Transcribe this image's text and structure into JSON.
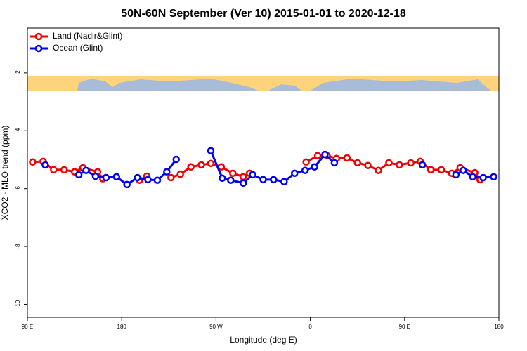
{
  "chart_data": {
    "type": "line",
    "title": "50N-60N September (Ver 10)   2015-01-01 to 2020-12-18",
    "x_label": "Longitude (deg E)",
    "y_label": "XCO2 - MLO trend (ppm)",
    "xlim": [
      90,
      540
    ],
    "xticks": [
      {
        "value": 90,
        "label": "90 E"
      },
      180,
      {
        "value": 270,
        "label": "90 W"
      },
      {
        "value": 360,
        "label": "0"
      },
      {
        "value": 450,
        "label": "90 E"
      },
      {
        "value": 540,
        "label": "180"
      }
    ],
    "ylim": [
      -10.45,
      -0.45
    ],
    "yticks": [
      -10,
      -8,
      -6,
      -4,
      -2
    ],
    "legend": "top-left",
    "series": [
      {
        "name": "Land (Nadir&Glint)",
        "color": "#ee0000",
        "x": [
          95,
          105,
          115,
          125,
          135,
          143,
          157,
          162,
          null,
          197,
          204,
          null,
          227,
          236,
          246,
          256,
          265,
          275,
          286,
          296,
          302,
          null,
          356,
          367,
          376,
          385,
          395,
          405,
          415,
          425,
          435,
          445,
          456,
          465,
          475,
          485,
          495,
          503,
          517,
          522
        ],
        "values": [
          -5.08,
          -5.06,
          -5.35,
          -5.35,
          -5.42,
          -5.28,
          -5.42,
          -5.66,
          null,
          -5.71,
          -5.57,
          null,
          -5.62,
          -5.5,
          -5.25,
          -5.18,
          -5.13,
          -5.25,
          -5.47,
          -5.59,
          -5.47,
          null,
          -5.08,
          -4.86,
          -4.86,
          -4.96,
          -4.94,
          -5.11,
          -5.2,
          -5.37,
          -5.11,
          -5.18,
          -5.11,
          -5.06,
          -5.35,
          -5.35,
          -5.47,
          -5.28,
          -5.45,
          -5.69
        ]
      },
      {
        "name": "Ocean (Glint)",
        "color": "#0000ee",
        "x": [
          107,
          null,
          139,
          146,
          155,
          165,
          175,
          185,
          195,
          205,
          214,
          223,
          232,
          null,
          265,
          276,
          284,
          296,
          305,
          315,
          325,
          335,
          345,
          355,
          364,
          374,
          383,
          null,
          467,
          null,
          499,
          506,
          515,
          525,
          535
        ],
        "values": [
          -5.18,
          null,
          -5.52,
          -5.37,
          -5.57,
          -5.62,
          -5.59,
          -5.86,
          -5.62,
          -5.69,
          -5.71,
          -5.42,
          -4.99,
          null,
          -4.69,
          -5.64,
          -5.71,
          -5.81,
          -5.52,
          -5.69,
          -5.69,
          -5.76,
          -5.47,
          -5.37,
          -5.25,
          -4.82,
          -5.11,
          null,
          -5.18,
          null,
          -5.52,
          -5.37,
          -5.59,
          -5.62,
          -5.59
        ]
      }
    ]
  }
}
